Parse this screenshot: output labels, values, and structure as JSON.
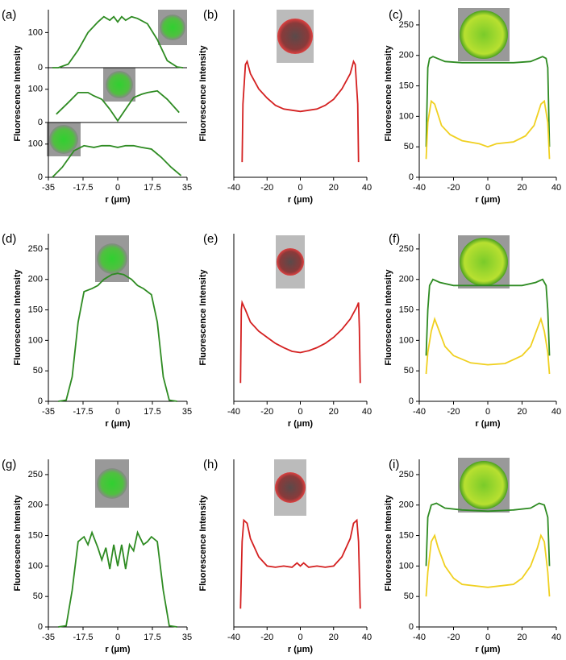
{
  "chart_data": [
    {
      "type": "line",
      "title": "(a)",
      "xlim": [
        -35,
        35
      ],
      "ylim": [
        0,
        165
      ],
      "yticks": [
        0,
        100
      ],
      "series": [
        {
          "color": "#2e8b22",
          "x": [
            -33,
            -30,
            -25,
            -20,
            -15,
            -10,
            -7,
            -4,
            -2,
            0,
            2,
            4,
            7,
            10,
            15,
            20,
            25,
            30,
            33
          ],
          "values": [
            0,
            0,
            10,
            50,
            100,
            130,
            145,
            135,
            145,
            130,
            145,
            135,
            145,
            140,
            125,
            80,
            20,
            2,
            0
          ]
        }
      ]
    },
    {
      "type": "line",
      "ylabel": "Fluorescence Intensity",
      "xlim": [
        -35,
        35
      ],
      "ylim": [
        0,
        165
      ],
      "yticks": [
        0,
        100
      ],
      "series": [
        {
          "color": "#2e8b22",
          "x": [
            -31,
            -25,
            -20,
            -15,
            -12,
            -8,
            -4,
            0,
            4,
            8,
            12,
            15,
            20,
            25,
            31
          ],
          "values": [
            25,
            60,
            90,
            90,
            80,
            70,
            40,
            5,
            40,
            75,
            85,
            90,
            95,
            70,
            30
          ]
        }
      ]
    },
    {
      "type": "line",
      "xlabel": "r (μm)",
      "xlim": [
        -35,
        35
      ],
      "xticks": [
        -35,
        -17.5,
        0,
        17.5,
        35
      ],
      "ylim": [
        0,
        165
      ],
      "yticks": [
        0,
        100
      ],
      "series": [
        {
          "color": "#2e8b22",
          "x": [
            -33,
            -28,
            -22,
            -17,
            -12,
            -8,
            -4,
            0,
            4,
            8,
            12,
            17,
            22,
            27,
            32
          ],
          "values": [
            0,
            30,
            80,
            95,
            90,
            95,
            95,
            90,
            95,
            95,
            90,
            85,
            60,
            30,
            5
          ]
        }
      ]
    },
    {
      "type": "line",
      "title": "(b)",
      "xlabel": "r (μm)",
      "ylabel": "Fluorescence Intensity",
      "xlim": [
        -40,
        40
      ],
      "xticks": [
        -40,
        -20,
        0,
        20,
        40
      ],
      "ylim": [
        0,
        275
      ],
      "series": [
        {
          "color": "#d42020",
          "x": [
            -35,
            -34.5,
            -33,
            -32,
            -30,
            -25,
            -20,
            -15,
            -10,
            -5,
            0,
            5,
            10,
            15,
            20,
            25,
            30,
            32,
            33,
            34.5,
            35
          ],
          "values": [
            25,
            120,
            185,
            190,
            170,
            145,
            130,
            118,
            112,
            110,
            108,
            110,
            112,
            118,
            128,
            145,
            170,
            190,
            185,
            120,
            25
          ]
        }
      ]
    },
    {
      "type": "line",
      "title": "(c)",
      "xlabel": "r (μm)",
      "ylabel": "Fluorescence Intensity",
      "xlim": [
        -40,
        40
      ],
      "xticks": [
        -40,
        -20,
        0,
        20,
        40
      ],
      "ylim": [
        0,
        275
      ],
      "yticks": [
        0,
        50,
        100,
        150,
        200,
        250
      ],
      "series": [
        {
          "color": "#2e8b22",
          "x": [
            -36,
            -35,
            -34,
            -32,
            -25,
            -15,
            0,
            15,
            25,
            32,
            34,
            35,
            36
          ],
          "values": [
            50,
            180,
            195,
            198,
            190,
            188,
            188,
            188,
            190,
            198,
            195,
            180,
            50
          ]
        },
        {
          "color": "#f0d020",
          "x": [
            -36,
            -35,
            -33,
            -31,
            -27,
            -22,
            -15,
            -5,
            0,
            5,
            15,
            22,
            27,
            31,
            33,
            35,
            36
          ],
          "values": [
            30,
            90,
            125,
            120,
            85,
            70,
            60,
            55,
            50,
            55,
            58,
            68,
            85,
            120,
            125,
            90,
            30
          ]
        }
      ]
    },
    {
      "type": "line",
      "title": "(d)",
      "xlabel": "r (μm)",
      "ylabel": "Fluorescence Intensity",
      "xlim": [
        -35,
        35
      ],
      "xticks": [
        -35,
        -17.5,
        0,
        17.5,
        35
      ],
      "ylim": [
        0,
        275
      ],
      "yticks": [
        0,
        50,
        100,
        150,
        200,
        250
      ],
      "series": [
        {
          "color": "#2e8b22",
          "x": [
            -30,
            -26,
            -23,
            -20,
            -17,
            -13,
            -10,
            -7,
            -3,
            0,
            3,
            7,
            10,
            13,
            17,
            20,
            23,
            26,
            30
          ],
          "values": [
            0,
            2,
            40,
            130,
            180,
            185,
            190,
            200,
            208,
            210,
            208,
            200,
            190,
            185,
            175,
            130,
            40,
            2,
            0
          ]
        }
      ]
    },
    {
      "type": "line",
      "title": "(e)",
      "xlabel": "r (μm)",
      "ylabel": "Fluorescence Intensity",
      "xlim": [
        -40,
        40
      ],
      "xticks": [
        -40,
        -20,
        0,
        20,
        40
      ],
      "ylim": [
        0,
        275
      ],
      "series": [
        {
          "color": "#d42020",
          "x": [
            -36,
            -35.5,
            -35,
            -33,
            -30,
            -25,
            -20,
            -15,
            -10,
            -5,
            0,
            5,
            10,
            15,
            20,
            25,
            30,
            34,
            35,
            35.5,
            36
          ],
          "values": [
            30,
            150,
            162,
            150,
            130,
            115,
            105,
            95,
            88,
            82,
            80,
            83,
            88,
            95,
            105,
            118,
            135,
            155,
            162,
            120,
            30
          ]
        }
      ]
    },
    {
      "type": "line",
      "title": "(f)",
      "xlabel": "r (μm)",
      "ylabel": "Fluorescence Intensity",
      "xlim": [
        -40,
        40
      ],
      "xticks": [
        -40,
        -20,
        0,
        20,
        40
      ],
      "ylim": [
        0,
        275
      ],
      "yticks": [
        0,
        50,
        100,
        150,
        200,
        250
      ],
      "series": [
        {
          "color": "#2e8b22",
          "x": [
            -36,
            -35,
            -34,
            -32,
            -28,
            -20,
            0,
            20,
            28,
            32,
            34,
            35,
            36
          ],
          "values": [
            75,
            150,
            190,
            200,
            195,
            190,
            190,
            190,
            195,
            200,
            190,
            150,
            75
          ]
        },
        {
          "color": "#f0d020",
          "x": [
            -36,
            -35,
            -33,
            -31,
            -29,
            -25,
            -20,
            -10,
            0,
            10,
            20,
            25,
            29,
            31,
            33,
            35,
            36
          ],
          "values": [
            45,
            80,
            115,
            135,
            120,
            90,
            75,
            63,
            60,
            62,
            75,
            90,
            120,
            135,
            115,
            80,
            45
          ]
        }
      ]
    },
    {
      "type": "line",
      "title": "(g)",
      "xlabel": "r (μm)",
      "ylabel": "Fluorescence Intensity",
      "xlim": [
        -35,
        35
      ],
      "xticks": [
        -35,
        -17.5,
        0,
        17.5,
        35
      ],
      "ylim": [
        0,
        275
      ],
      "yticks": [
        0,
        50,
        100,
        150,
        200,
        250
      ],
      "series": [
        {
          "color": "#2e8b22",
          "x": [
            -30,
            -26,
            -23,
            -20,
            -17,
            -15,
            -13,
            -10,
            -8,
            -6,
            -4,
            -2,
            0,
            2,
            4,
            6,
            8,
            10,
            13,
            15,
            17,
            20,
            23,
            26,
            30
          ],
          "values": [
            0,
            2,
            60,
            140,
            148,
            135,
            155,
            130,
            110,
            130,
            95,
            135,
            100,
            135,
            95,
            135,
            125,
            155,
            135,
            140,
            148,
            140,
            60,
            2,
            0
          ]
        }
      ]
    },
    {
      "type": "line",
      "title": "(h)",
      "xlabel": "r (μm)",
      "ylabel": "Fluorescence Intensity",
      "xlim": [
        -40,
        40
      ],
      "xticks": [
        -40,
        -20,
        0,
        20,
        40
      ],
      "ylim": [
        0,
        275
      ],
      "series": [
        {
          "color": "#d42020",
          "x": [
            -36,
            -35,
            -34,
            -32,
            -30,
            -25,
            -20,
            -15,
            -10,
            -5,
            -2,
            0,
            2,
            5,
            10,
            15,
            20,
            25,
            30,
            32,
            34,
            35,
            36
          ],
          "values": [
            30,
            140,
            175,
            170,
            145,
            115,
            100,
            98,
            100,
            98,
            105,
            100,
            105,
            98,
            100,
            98,
            100,
            115,
            145,
            170,
            175,
            140,
            30
          ]
        }
      ]
    },
    {
      "type": "line",
      "title": "(i)",
      "xlabel": "r (μm)",
      "ylabel": "Fluorescence Intensity",
      "xlim": [
        -40,
        40
      ],
      "xticks": [
        -40,
        -20,
        0,
        20,
        40
      ],
      "ylim": [
        0,
        275
      ],
      "yticks": [
        0,
        50,
        100,
        150,
        200,
        250
      ],
      "series": [
        {
          "color": "#2e8b22",
          "x": [
            -36,
            -35,
            -33,
            -30,
            -25,
            -15,
            0,
            15,
            25,
            30,
            33,
            35,
            36
          ],
          "values": [
            100,
            180,
            200,
            203,
            195,
            192,
            190,
            192,
            195,
            203,
            200,
            180,
            100
          ]
        },
        {
          "color": "#f0d020",
          "x": [
            -36,
            -35,
            -33,
            -31,
            -29,
            -25,
            -20,
            -15,
            0,
            15,
            20,
            25,
            29,
            31,
            33,
            35,
            36
          ],
          "values": [
            50,
            90,
            140,
            150,
            130,
            100,
            80,
            70,
            65,
            70,
            80,
            100,
            130,
            150,
            140,
            90,
            50
          ]
        }
      ]
    }
  ]
}
